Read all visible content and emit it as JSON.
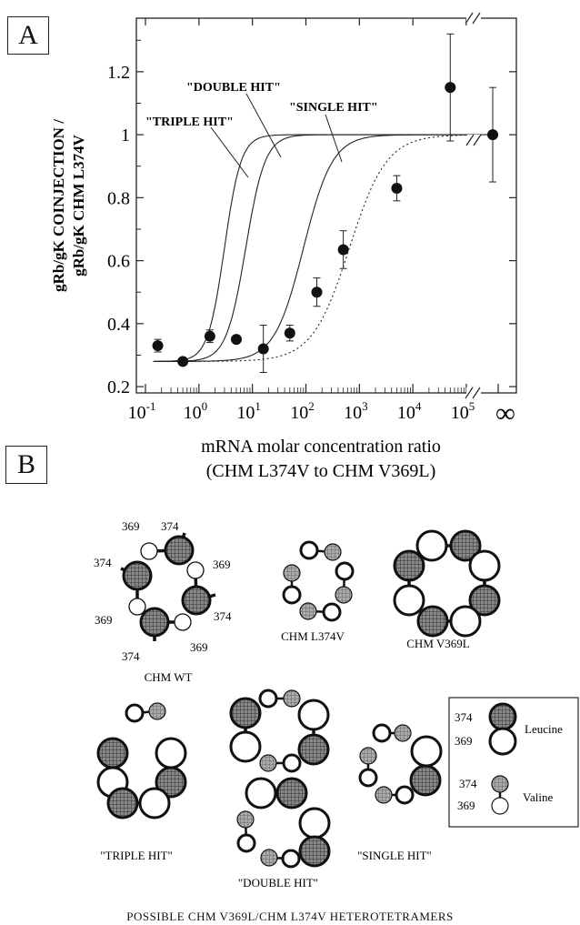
{
  "panel_a": {
    "label": "A",
    "ylabel_line1": "gRb/gK COINJECTION /",
    "ylabel_line2": "gRb/gK CHM L374V",
    "xlabel_line1": "mRNA molar concentration ratio",
    "xlabel_line2": "(CHM L374V to CHM V369L)",
    "infinity_label": "∞",
    "curve_labels": {
      "triple": "\"TRIPLE HIT\"",
      "double": "\"DOUBLE HIT\"",
      "single": "\"SINGLE HIT\""
    }
  },
  "chart_data": {
    "type": "scatter",
    "xlabel": "mRNA molar concentration ratio (CHM L374V to CHM V369L)",
    "ylabel": "gRb/gK COINJECTION / gRb/gK CHM L374V",
    "x_scale": "log",
    "xlim": [
      0.1,
      100000
    ],
    "ylim": [
      0.18,
      1.37
    ],
    "x_ticks": [
      {
        "base": "10",
        "exp": "-1",
        "value": 0.1
      },
      {
        "base": "10",
        "exp": "0",
        "value": 1
      },
      {
        "base": "10",
        "exp": "1",
        "value": 10
      },
      {
        "base": "10",
        "exp": "2",
        "value": 100
      },
      {
        "base": "10",
        "exp": "3",
        "value": 1000
      },
      {
        "base": "10",
        "exp": "4",
        "value": 10000
      },
      {
        "base": "10",
        "exp": "5",
        "value": 100000
      }
    ],
    "y_ticks": [
      {
        "label": "0.2",
        "value": 0.2
      },
      {
        "label": "0.4",
        "value": 0.4
      },
      {
        "label": "0.6",
        "value": 0.6
      },
      {
        "label": "0.8",
        "value": 0.8
      },
      {
        "label": "1",
        "value": 1.0
      },
      {
        "label": "1.2",
        "value": 1.2
      }
    ],
    "points": [
      {
        "x": 0.17,
        "y": 0.33,
        "err": 0.02
      },
      {
        "x": 0.5,
        "y": 0.28,
        "err": 0.0
      },
      {
        "x": 1.6,
        "y": 0.36,
        "err": 0.02
      },
      {
        "x": 5.0,
        "y": 0.35,
        "err": 0.0
      },
      {
        "x": 16,
        "y": 0.32,
        "err": 0.075
      },
      {
        "x": 50,
        "y": 0.37,
        "err": 0.025
      },
      {
        "x": 160,
        "y": 0.5,
        "err": 0.045
      },
      {
        "x": 500,
        "y": 0.635,
        "err": 0.06
      },
      {
        "x": 5000,
        "y": 0.83,
        "err": 0.04
      },
      {
        "x": 50000,
        "y": 1.15,
        "err": 0.17
      }
    ],
    "infinity_point": {
      "y": 1.0,
      "err": 0.15
    },
    "curves": [
      {
        "name": "\"TRIPLE HIT\"",
        "style": "solid",
        "midpoint": 3.0,
        "slope": 2.8
      },
      {
        "name": "\"DOUBLE HIT\"",
        "style": "solid",
        "midpoint": 7.5,
        "slope": 2.4
      },
      {
        "name": "\"SINGLE HIT\"",
        "style": "solid",
        "midpoint": 90,
        "slope": 1.6
      },
      {
        "name": "",
        "style": "dotted",
        "midpoint": 650,
        "slope": 1.25
      }
    ],
    "baseline": 0.28,
    "plateau": 1.0
  },
  "panel_b": {
    "label": "B",
    "wt": {
      "title": "CHM WT",
      "labels": [
        "369",
        "374",
        "374",
        "369",
        "374",
        "369",
        "374",
        "369"
      ]
    },
    "l374v": {
      "title": "CHM L374V"
    },
    "v369l": {
      "title": "CHM V369L"
    },
    "triple": {
      "title": "\"TRIPLE HIT\""
    },
    "double": {
      "title": "\"DOUBLE HIT\""
    },
    "single": {
      "title": "\"SINGLE HIT\""
    },
    "legend": {
      "n374a": "374",
      "n369a": "369",
      "leucine": "Leucine",
      "n374b": "374",
      "n369b": "369",
      "valine": "Valine"
    },
    "footer": "POSSIBLE CHM V369L/CHM L374V HETEROTETRAMERS"
  }
}
